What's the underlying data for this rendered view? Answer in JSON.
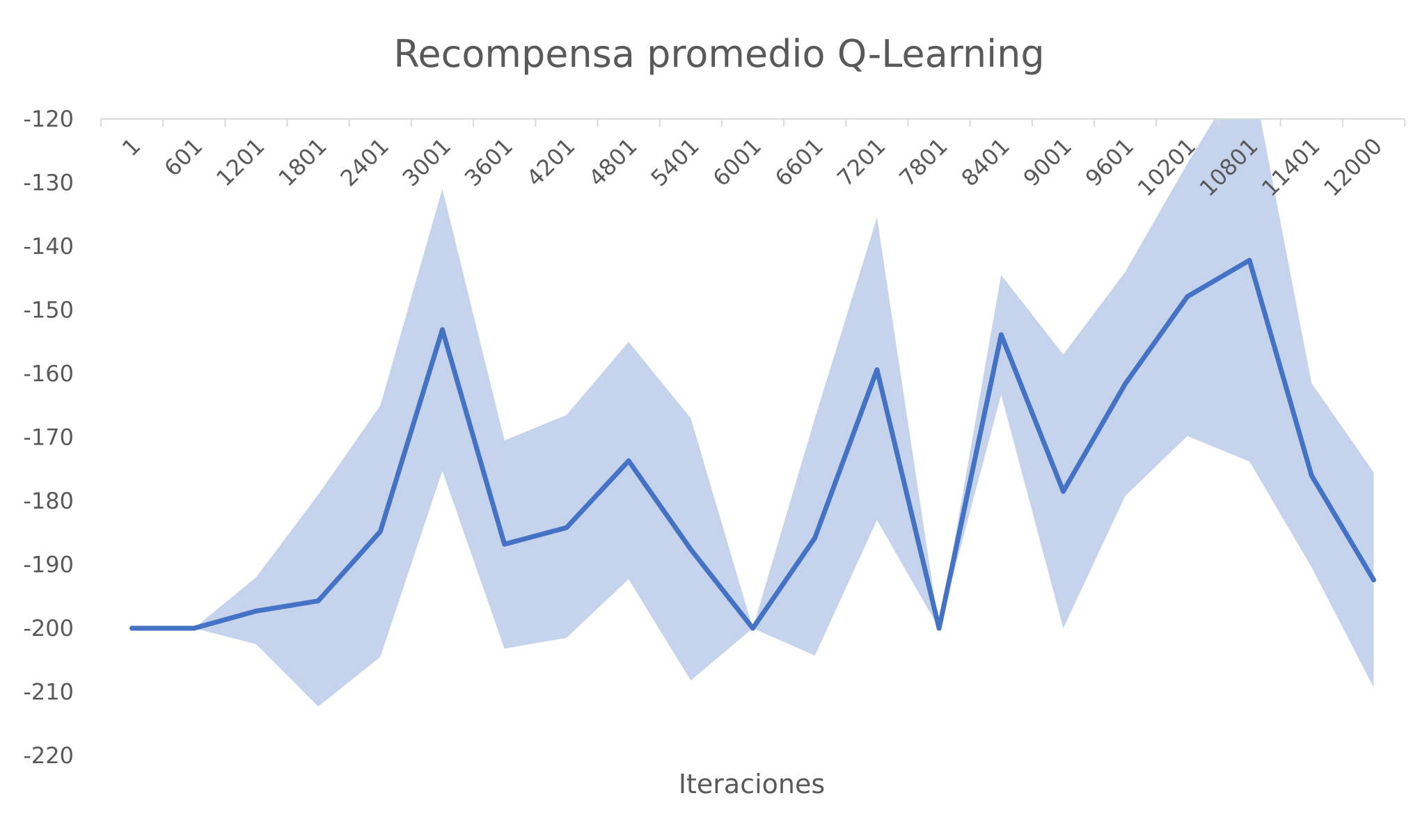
{
  "chart_data": {
    "type": "line",
    "title": "Recompensa promedio Q-Learning",
    "xlabel": "Iteraciones",
    "ylabel": "",
    "categories": [
      "1",
      "601",
      "1201",
      "1801",
      "2401",
      "3001",
      "3601",
      "4201",
      "4801",
      "5401",
      "6001",
      "6601",
      "7201",
      "7801",
      "8401",
      "9001",
      "9601",
      "10201",
      "10801",
      "11401",
      "12000"
    ],
    "ylim": [
      -220,
      -120
    ],
    "yticks": [
      -120,
      -130,
      -140,
      -150,
      -160,
      -170,
      -180,
      -190,
      -200,
      -210,
      -220
    ],
    "grid": false,
    "legend": "none",
    "series": [
      {
        "role": "mean",
        "values": [
          -200,
          -200,
          -197.3,
          -195.7,
          -184.8,
          -153.1,
          -186.8,
          -184.2,
          -173.7,
          -187.6,
          -200,
          -185.8,
          -159.4,
          -200,
          -153.9,
          -178.5,
          -161.6,
          -147.9,
          -142.2,
          -176,
          -192.4
        ]
      },
      {
        "role": "upper band",
        "values": [
          -200,
          -200,
          -192,
          -179,
          -165,
          -131,
          -170.5,
          -166.5,
          -155,
          -167,
          -200,
          -167,
          -135.5,
          -200,
          -144.5,
          -157,
          -144,
          -127,
          -111,
          -161.5,
          -175.5
        ]
      },
      {
        "role": "lower band",
        "values": [
          -200,
          -200,
          -202.5,
          -212.3,
          -204.5,
          -175.3,
          -203.2,
          -201.5,
          -192.3,
          -208.2,
          -200,
          -204.3,
          -183,
          -200,
          -163.3,
          -200,
          -179.2,
          -169.8,
          -173.8,
          -190.4,
          -209.3
        ]
      }
    ],
    "colors": {
      "line": "#4472C4",
      "band": "#C6D3EC",
      "axis": "#D9D9D9",
      "text": "#595959"
    }
  }
}
